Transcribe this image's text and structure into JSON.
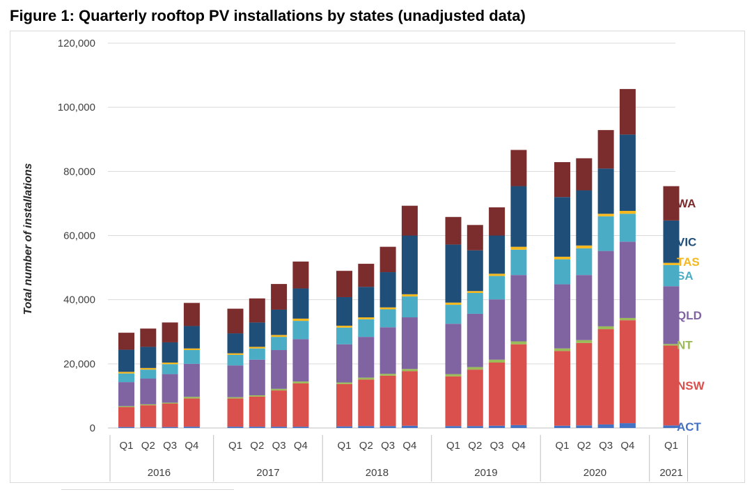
{
  "figure_title": "Figure 1: Quarterly rooftop PV installations by states (unadjusted data)",
  "chart_data": {
    "type": "bar",
    "stacked": true,
    "title": "Figure 1: Quarterly rooftop PV installations by states (unadjusted data)",
    "ylabel": "Total number of installations",
    "xlabel": "",
    "ylim": [
      0,
      120000
    ],
    "yticks": [
      0,
      20000,
      40000,
      60000,
      80000,
      100000,
      120000
    ],
    "ytick_labels": [
      "0",
      "20,000",
      "40,000",
      "60,000",
      "80,000",
      "100,000",
      "120,000"
    ],
    "grid": "horizontal",
    "legend_placement": "right",
    "groups": [
      {
        "year": "2016",
        "quarters": [
          "Q1",
          "Q2",
          "Q3",
          "Q4"
        ]
      },
      {
        "year": "2017",
        "quarters": [
          "Q1",
          "Q2",
          "Q3",
          "Q4"
        ]
      },
      {
        "year": "2018",
        "quarters": [
          "Q1",
          "Q2",
          "Q3",
          "Q4"
        ]
      },
      {
        "year": "2019",
        "quarters": [
          "Q1",
          "Q2",
          "Q3",
          "Q4"
        ]
      },
      {
        "year": "2020",
        "quarters": [
          "Q1",
          "Q2",
          "Q3",
          "Q4"
        ]
      },
      {
        "year": "2021",
        "quarters": [
          "Q1"
        ]
      }
    ],
    "series": [
      {
        "name": "ACT",
        "color": "#4472c4",
        "values": [
          300,
          300,
          300,
          400,
          400,
          400,
          400,
          400,
          500,
          600,
          600,
          700,
          600,
          600,
          700,
          900,
          700,
          800,
          1100,
          1500,
          800
        ]
      },
      {
        "name": "NSW",
        "color": "#d9504d",
        "values": [
          6200,
          6800,
          7300,
          8800,
          8800,
          9400,
          11300,
          13500,
          13200,
          14500,
          15700,
          17000,
          15500,
          17600,
          19700,
          25200,
          23300,
          25700,
          29700,
          32100,
          24900
        ]
      },
      {
        "name": "NT",
        "color": "#9bbb59",
        "values": [
          300,
          300,
          300,
          500,
          400,
          400,
          500,
          600,
          500,
          600,
          600,
          700,
          700,
          800,
          900,
          900,
          800,
          900,
          900,
          700,
          500
        ]
      },
      {
        "name": "QLD",
        "color": "#8064a2",
        "values": [
          7500,
          8000,
          8900,
          10300,
          9900,
          11100,
          12100,
          13200,
          11900,
          12700,
          14500,
          16100,
          15700,
          16600,
          18800,
          20700,
          20000,
          20300,
          23500,
          23800,
          18000
        ]
      },
      {
        "name": "SA",
        "color": "#4bacc6",
        "values": [
          2700,
          2800,
          3100,
          4300,
          3300,
          3500,
          4100,
          5700,
          5200,
          5500,
          5600,
          6500,
          5900,
          6500,
          7300,
          7900,
          7800,
          8300,
          10800,
          8700,
          6600
        ]
      },
      {
        "name": "TAS",
        "color": "#f5b81e",
        "values": [
          500,
          500,
          500,
          500,
          500,
          500,
          600,
          700,
          600,
          600,
          600,
          700,
          700,
          600,
          700,
          900,
          800,
          900,
          800,
          900,
          700
        ]
      },
      {
        "name": "VIC",
        "color": "#1f4e79",
        "values": [
          6900,
          6600,
          6300,
          7000,
          6200,
          7600,
          7900,
          9400,
          8900,
          9500,
          11000,
          18300,
          18100,
          12700,
          11900,
          18900,
          18600,
          17200,
          14100,
          23800,
          13200
        ]
      },
      {
        "name": "WA",
        "color": "#7b2c2c",
        "values": [
          5300,
          5700,
          6200,
          7200,
          7700,
          7500,
          8000,
          8400,
          8200,
          7200,
          7900,
          9300,
          8600,
          7900,
          8800,
          11300,
          10900,
          10000,
          12000,
          14200,
          10700
        ]
      }
    ]
  }
}
